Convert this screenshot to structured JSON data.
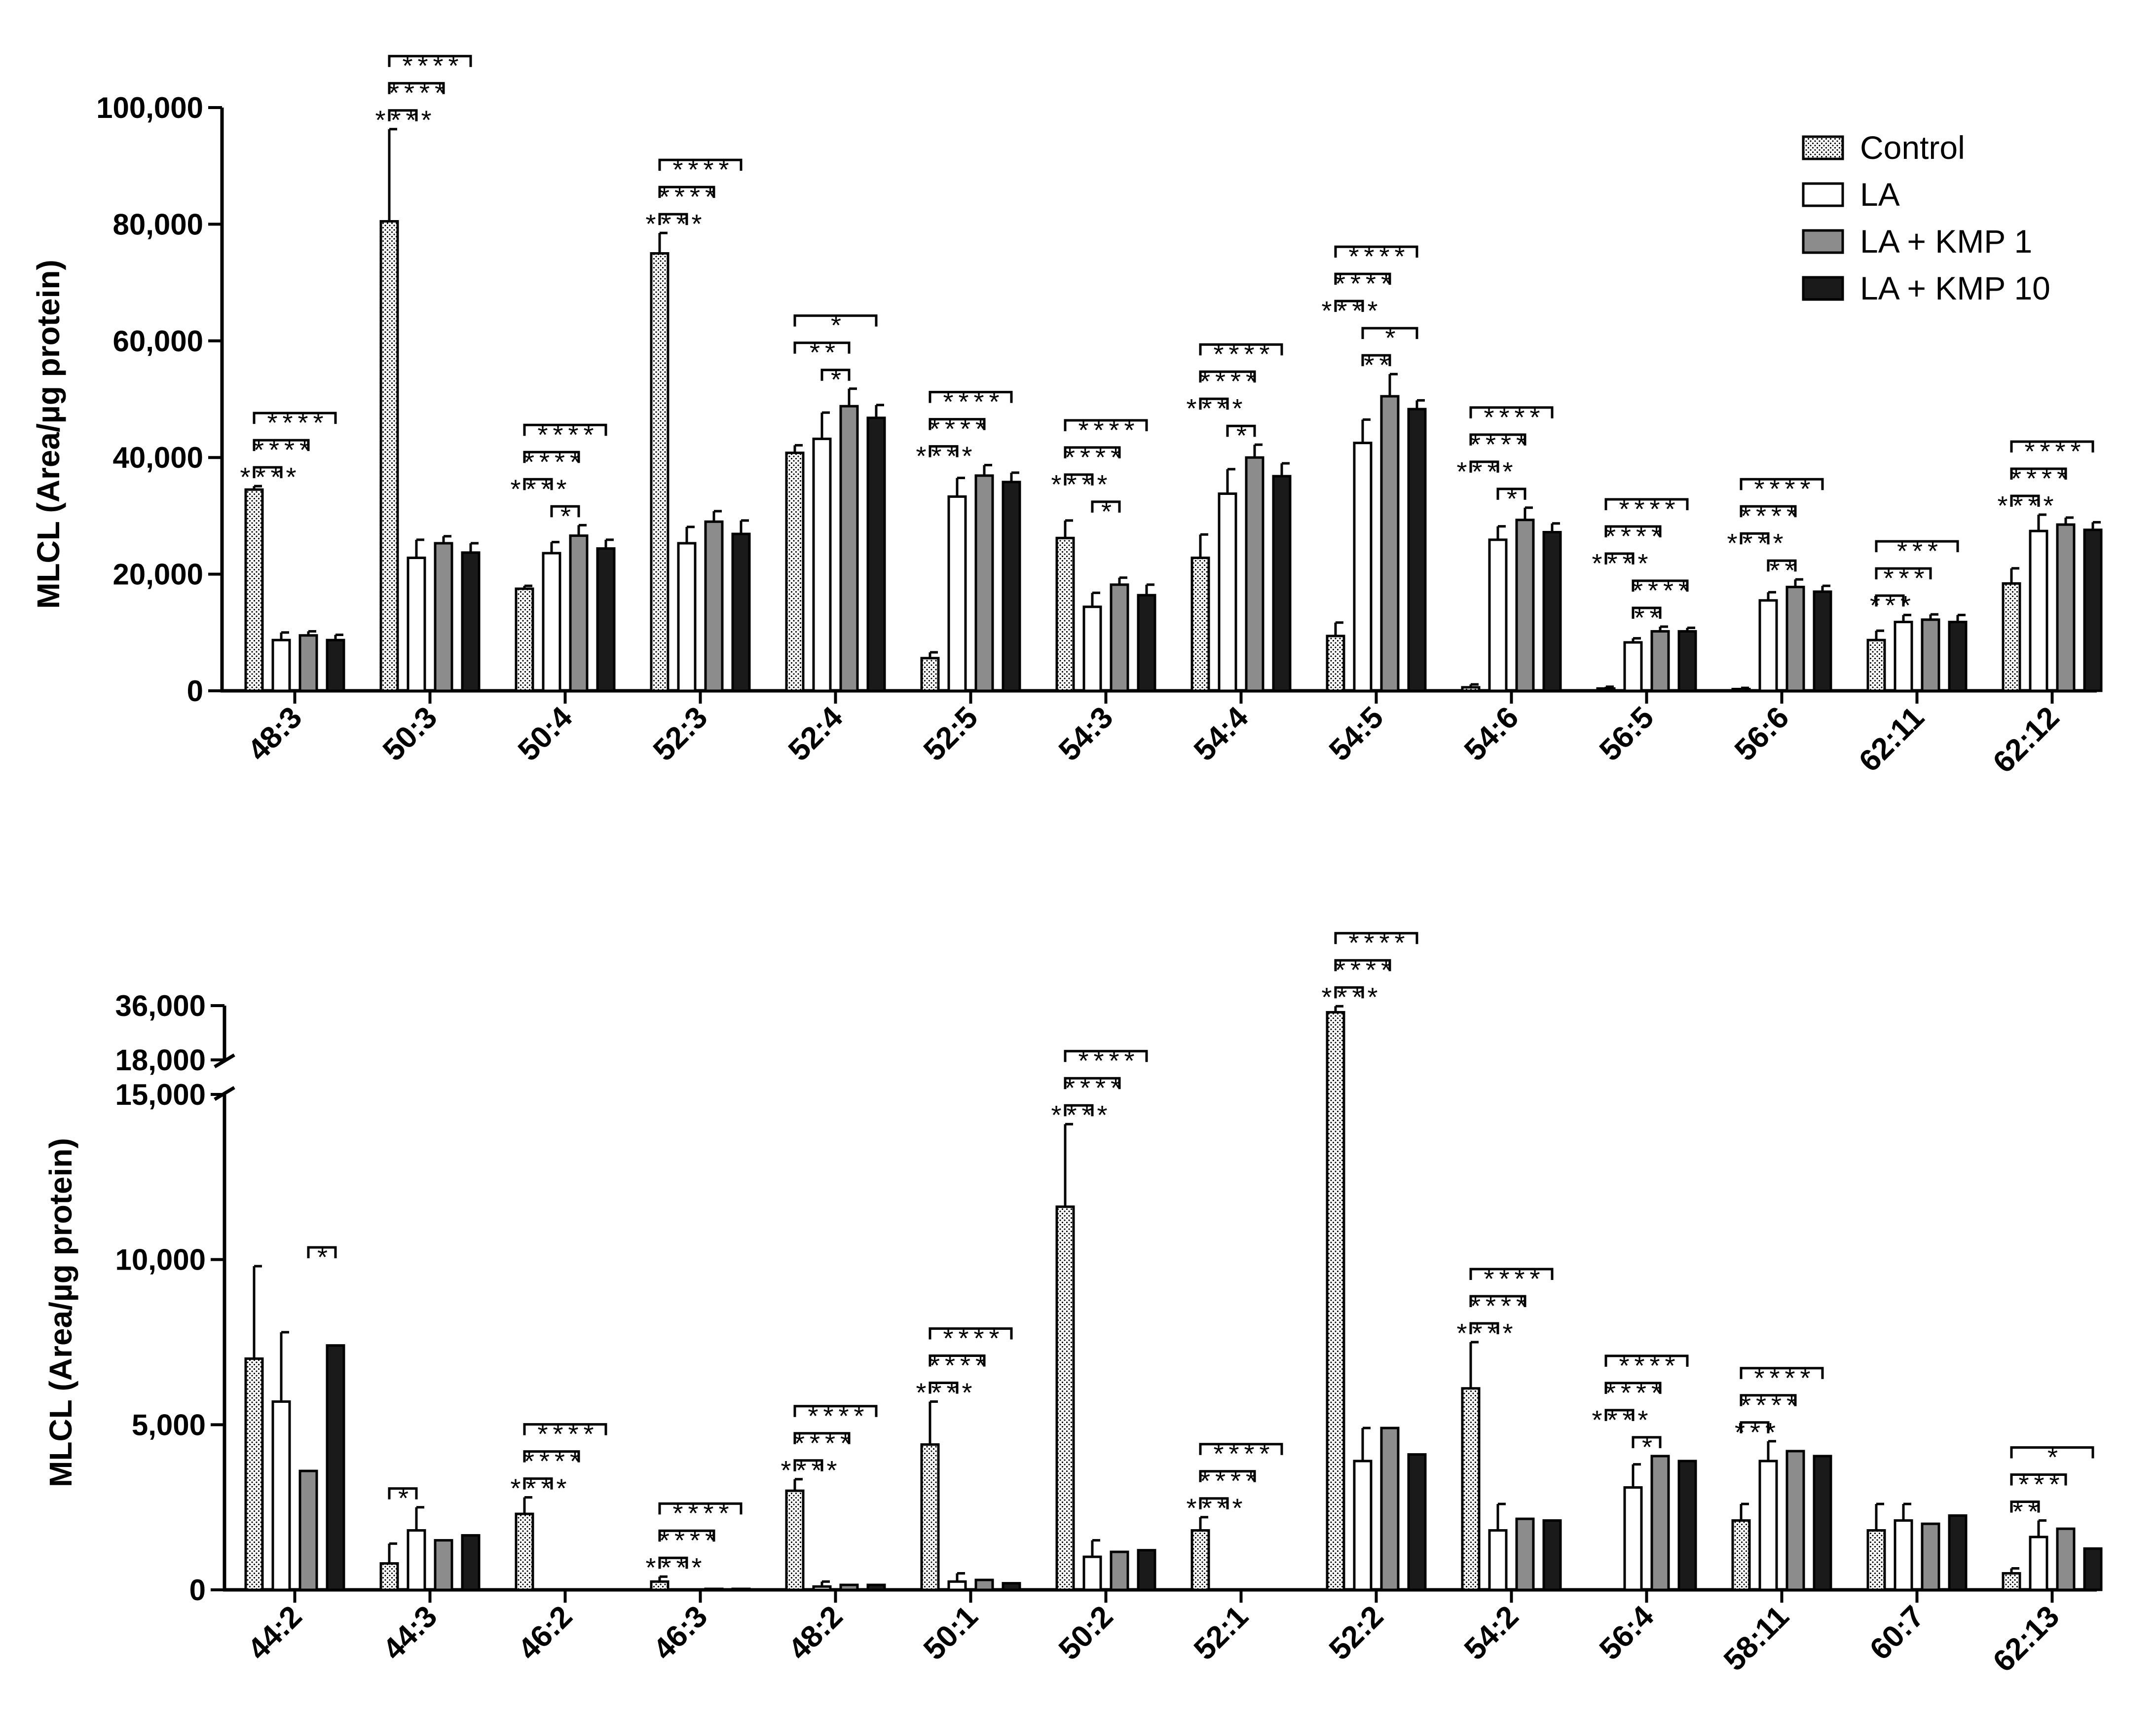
{
  "chart_data": [
    {
      "type": "bar",
      "panel": "top",
      "ylabel": "MLCL (Area/µg protein)",
      "ylim": [
        0,
        100000
      ],
      "yticks": [
        "0",
        "20,000",
        "40,000",
        "60,000",
        "80,000",
        "100,000"
      ],
      "ytick_values": [
        0,
        20000,
        40000,
        60000,
        80000,
        100000
      ],
      "categories": [
        "48:3",
        "50:3",
        "50:4",
        "52:3",
        "52:4",
        "52:5",
        "54:3",
        "54:4",
        "54:5",
        "54:6",
        "56:5",
        "56:6",
        "62:11",
        "62:12"
      ],
      "series": [
        {
          "name": "Control",
          "fill": "dotted",
          "values": [
            34500,
            80500,
            17500,
            75000,
            40800,
            5600,
            26200,
            22800,
            9400,
            600,
            400,
            300,
            8700,
            18400
          ],
          "errors": [
            600,
            15800,
            500,
            3500,
            1300,
            1000,
            3000,
            4000,
            2300,
            500,
            300,
            200,
            1600,
            2600
          ]
        },
        {
          "name": "LA",
          "fill": "#ffffff",
          "values": [
            8700,
            22800,
            23600,
            25300,
            43200,
            33300,
            14400,
            33800,
            42500,
            25900,
            8300,
            15500,
            11800,
            27400
          ],
          "errors": [
            1300,
            3100,
            1900,
            2800,
            4500,
            3200,
            2400,
            4200,
            4000,
            2300,
            700,
            1400,
            1200,
            2800
          ]
        },
        {
          "name": "LA + KMP 1",
          "fill": "#8c8c8c",
          "values": [
            9500,
            25300,
            26600,
            29000,
            48800,
            36900,
            18200,
            40000,
            50500,
            29300,
            10200,
            17800,
            12200,
            28500
          ],
          "errors": [
            700,
            1200,
            1800,
            1800,
            3000,
            1800,
            1200,
            2200,
            3800,
            2100,
            800,
            1300,
            900,
            1200
          ]
        },
        {
          "name": "LA + KMP 10",
          "fill": "#1a1a1a",
          "values": [
            8700,
            23700,
            24400,
            26900,
            46800,
            35800,
            16400,
            36800,
            48300,
            27200,
            10200,
            17000,
            11800,
            27600
          ],
          "errors": [
            900,
            1600,
            1500,
            2300,
            2200,
            1600,
            1800,
            2200,
            1500,
            1500,
            600,
            1000,
            1200,
            1300
          ]
        }
      ],
      "significance": [
        [
          {
            "a": 0,
            "b": 1,
            "label": "****"
          },
          {
            "a": 0,
            "b": 2,
            "label": "****"
          },
          {
            "a": 0,
            "b": 3,
            "label": "****"
          }
        ],
        [
          {
            "a": 0,
            "b": 1,
            "label": "****"
          },
          {
            "a": 0,
            "b": 2,
            "label": "****"
          },
          {
            "a": 0,
            "b": 3,
            "label": "****"
          }
        ],
        [
          {
            "a": 1,
            "b": 2,
            "label": "*"
          },
          {
            "a": 0,
            "b": 1,
            "label": "****"
          },
          {
            "a": 0,
            "b": 2,
            "label": "****"
          },
          {
            "a": 0,
            "b": 3,
            "label": "****"
          }
        ],
        [
          {
            "a": 0,
            "b": 1,
            "label": "****"
          },
          {
            "a": 0,
            "b": 2,
            "label": "****"
          },
          {
            "a": 0,
            "b": 3,
            "label": "****"
          }
        ],
        [
          {
            "a": 1,
            "b": 2,
            "label": "*"
          },
          {
            "a": 0,
            "b": 2,
            "label": "**"
          },
          {
            "a": 0,
            "b": 3,
            "label": "*"
          }
        ],
        [
          {
            "a": 0,
            "b": 1,
            "label": "****"
          },
          {
            "a": 0,
            "b": 2,
            "label": "****"
          },
          {
            "a": 0,
            "b": 3,
            "label": "****"
          }
        ],
        [
          {
            "a": 1,
            "b": 2,
            "label": "*"
          },
          {
            "a": 0,
            "b": 1,
            "label": "****"
          },
          {
            "a": 0,
            "b": 2,
            "label": "****"
          },
          {
            "a": 0,
            "b": 3,
            "label": "****"
          }
        ],
        [
          {
            "a": 1,
            "b": 2,
            "label": "*"
          },
          {
            "a": 0,
            "b": 1,
            "label": "****"
          },
          {
            "a": 0,
            "b": 2,
            "label": "****"
          },
          {
            "a": 0,
            "b": 3,
            "label": "****"
          }
        ],
        [
          {
            "a": 1,
            "b": 2,
            "label": "**"
          },
          {
            "a": 1,
            "b": 3,
            "label": "*"
          },
          {
            "a": 0,
            "b": 1,
            "label": "****"
          },
          {
            "a": 0,
            "b": 2,
            "label": "****"
          },
          {
            "a": 0,
            "b": 3,
            "label": "****"
          }
        ],
        [
          {
            "a": 1,
            "b": 2,
            "label": "*"
          },
          {
            "a": 0,
            "b": 1,
            "label": "****"
          },
          {
            "a": 0,
            "b": 2,
            "label": "****"
          },
          {
            "a": 0,
            "b": 3,
            "label": "****"
          }
        ],
        [
          {
            "a": 1,
            "b": 2,
            "label": "**"
          },
          {
            "a": 1,
            "b": 3,
            "label": "****"
          },
          {
            "a": 0,
            "b": 1,
            "label": "****"
          },
          {
            "a": 0,
            "b": 2,
            "label": "****"
          },
          {
            "a": 0,
            "b": 3,
            "label": "****"
          }
        ],
        [
          {
            "a": 1,
            "b": 2,
            "label": "**"
          },
          {
            "a": 0,
            "b": 1,
            "label": "****"
          },
          {
            "a": 0,
            "b": 2,
            "label": "****"
          },
          {
            "a": 0,
            "b": 3,
            "label": "****"
          }
        ],
        [
          {
            "a": 0,
            "b": 1,
            "label": "***"
          },
          {
            "a": 0,
            "b": 2,
            "label": "***"
          },
          {
            "a": 0,
            "b": 3,
            "label": "***"
          }
        ],
        [
          {
            "a": 0,
            "b": 1,
            "label": "****"
          },
          {
            "a": 0,
            "b": 2,
            "label": "****"
          },
          {
            "a": 0,
            "b": 3,
            "label": "****"
          }
        ]
      ]
    },
    {
      "type": "bar",
      "panel": "bottom",
      "ylabel": "MLCL (Area/µg protein)",
      "ylim": [
        0,
        36000
      ],
      "axis_break": [
        15000,
        18000
      ],
      "yticks": [
        "0",
        "5,000",
        "10,000",
        "15,000",
        "18,000",
        "36,000"
      ],
      "ytick_values": [
        0,
        5000,
        10000,
        15000,
        18000,
        36000
      ],
      "categories": [
        "44:2",
        "44:3",
        "46:2",
        "46:3",
        "48:2",
        "50:1",
        "50:2",
        "52:1",
        "52:2",
        "54:2",
        "56:4",
        "58:11",
        "60:7",
        "62:13"
      ],
      "series": [
        {
          "name": "Control",
          "fill": "dotted",
          "values": [
            7000,
            800,
            2300,
            250,
            3000,
            4400,
            11600,
            1800,
            33800,
            6100,
            0,
            2100,
            1800,
            500
          ],
          "errors": [
            2800,
            600,
            500,
            150,
            350,
            1300,
            2500,
            400,
            2000,
            1400,
            0,
            500,
            800,
            150
          ]
        },
        {
          "name": "LA",
          "fill": "#ffffff",
          "values": [
            5700,
            1800,
            0,
            0,
            100,
            250,
            1000,
            0,
            3900,
            1800,
            3100,
            3900,
            2100,
            1600
          ],
          "errors": [
            2100,
            700,
            0,
            0,
            150,
            250,
            500,
            0,
            1000,
            800,
            700,
            600,
            500,
            500
          ]
        },
        {
          "name": "LA + KMP 1",
          "fill": "#8c8c8c",
          "values": [
            3600,
            1500,
            0,
            30,
            150,
            300,
            1150,
            0,
            4900,
            2150,
            4050,
            4200,
            2000,
            1850
          ]
        },
        {
          "name": "LA + KMP 10",
          "fill": "#1a1a1a",
          "values": [
            7400,
            1650,
            0,
            30,
            150,
            200,
            1200,
            0,
            4100,
            2100,
            3900,
            4050,
            2250,
            1250
          ]
        }
      ],
      "significance": [
        [
          {
            "a": 2,
            "b": 3,
            "label": "*"
          }
        ],
        [
          {
            "a": 0,
            "b": 1,
            "label": "*"
          }
        ],
        [
          {
            "a": 0,
            "b": 1,
            "label": "****"
          },
          {
            "a": 0,
            "b": 2,
            "label": "****"
          },
          {
            "a": 0,
            "b": 3,
            "label": "****"
          }
        ],
        [
          {
            "a": 0,
            "b": 1,
            "label": "****"
          },
          {
            "a": 0,
            "b": 2,
            "label": "****"
          },
          {
            "a": 0,
            "b": 3,
            "label": "****"
          }
        ],
        [
          {
            "a": 0,
            "b": 1,
            "label": "****"
          },
          {
            "a": 0,
            "b": 2,
            "label": "****"
          },
          {
            "a": 0,
            "b": 3,
            "label": "****"
          }
        ],
        [
          {
            "a": 0,
            "b": 1,
            "label": "****"
          },
          {
            "a": 0,
            "b": 2,
            "label": "****"
          },
          {
            "a": 0,
            "b": 3,
            "label": "****"
          }
        ],
        [
          {
            "a": 0,
            "b": 1,
            "label": "****"
          },
          {
            "a": 0,
            "b": 2,
            "label": "****"
          },
          {
            "a": 0,
            "b": 3,
            "label": "****"
          }
        ],
        [
          {
            "a": 0,
            "b": 1,
            "label": "****"
          },
          {
            "a": 0,
            "b": 2,
            "label": "****"
          },
          {
            "a": 0,
            "b": 3,
            "label": "****"
          }
        ],
        [
          {
            "a": 0,
            "b": 1,
            "label": "****"
          },
          {
            "a": 0,
            "b": 2,
            "label": "****"
          },
          {
            "a": 0,
            "b": 3,
            "label": "****"
          }
        ],
        [
          {
            "a": 0,
            "b": 1,
            "label": "****"
          },
          {
            "a": 0,
            "b": 2,
            "label": "****"
          },
          {
            "a": 0,
            "b": 3,
            "label": "****"
          }
        ],
        [
          {
            "a": 1,
            "b": 2,
            "label": "*"
          },
          {
            "a": 0,
            "b": 1,
            "label": "****"
          },
          {
            "a": 0,
            "b": 2,
            "label": "****"
          },
          {
            "a": 0,
            "b": 3,
            "label": "****"
          }
        ],
        [
          {
            "a": 0,
            "b": 1,
            "label": "***"
          },
          {
            "a": 0,
            "b": 2,
            "label": "****"
          },
          {
            "a": 0,
            "b": 3,
            "label": "****"
          }
        ],
        [],
        [
          {
            "a": 0,
            "b": 1,
            "label": "**"
          },
          {
            "a": 0,
            "b": 2,
            "label": "***"
          },
          {
            "a": 0,
            "b": 3,
            "label": "*"
          }
        ]
      ]
    }
  ],
  "legend": {
    "items": [
      {
        "label": "Control",
        "fill": "dotted"
      },
      {
        "label": "LA",
        "fill": "#ffffff"
      },
      {
        "label": "LA + KMP 1",
        "fill": "#8c8c8c"
      },
      {
        "label": "LA + KMP 10",
        "fill": "#1a1a1a"
      }
    ]
  },
  "colors": {
    "axis": "#000000",
    "kmp1": "#8c8c8c",
    "kmp10": "#1a1a1a",
    "dots": "#000000"
  }
}
